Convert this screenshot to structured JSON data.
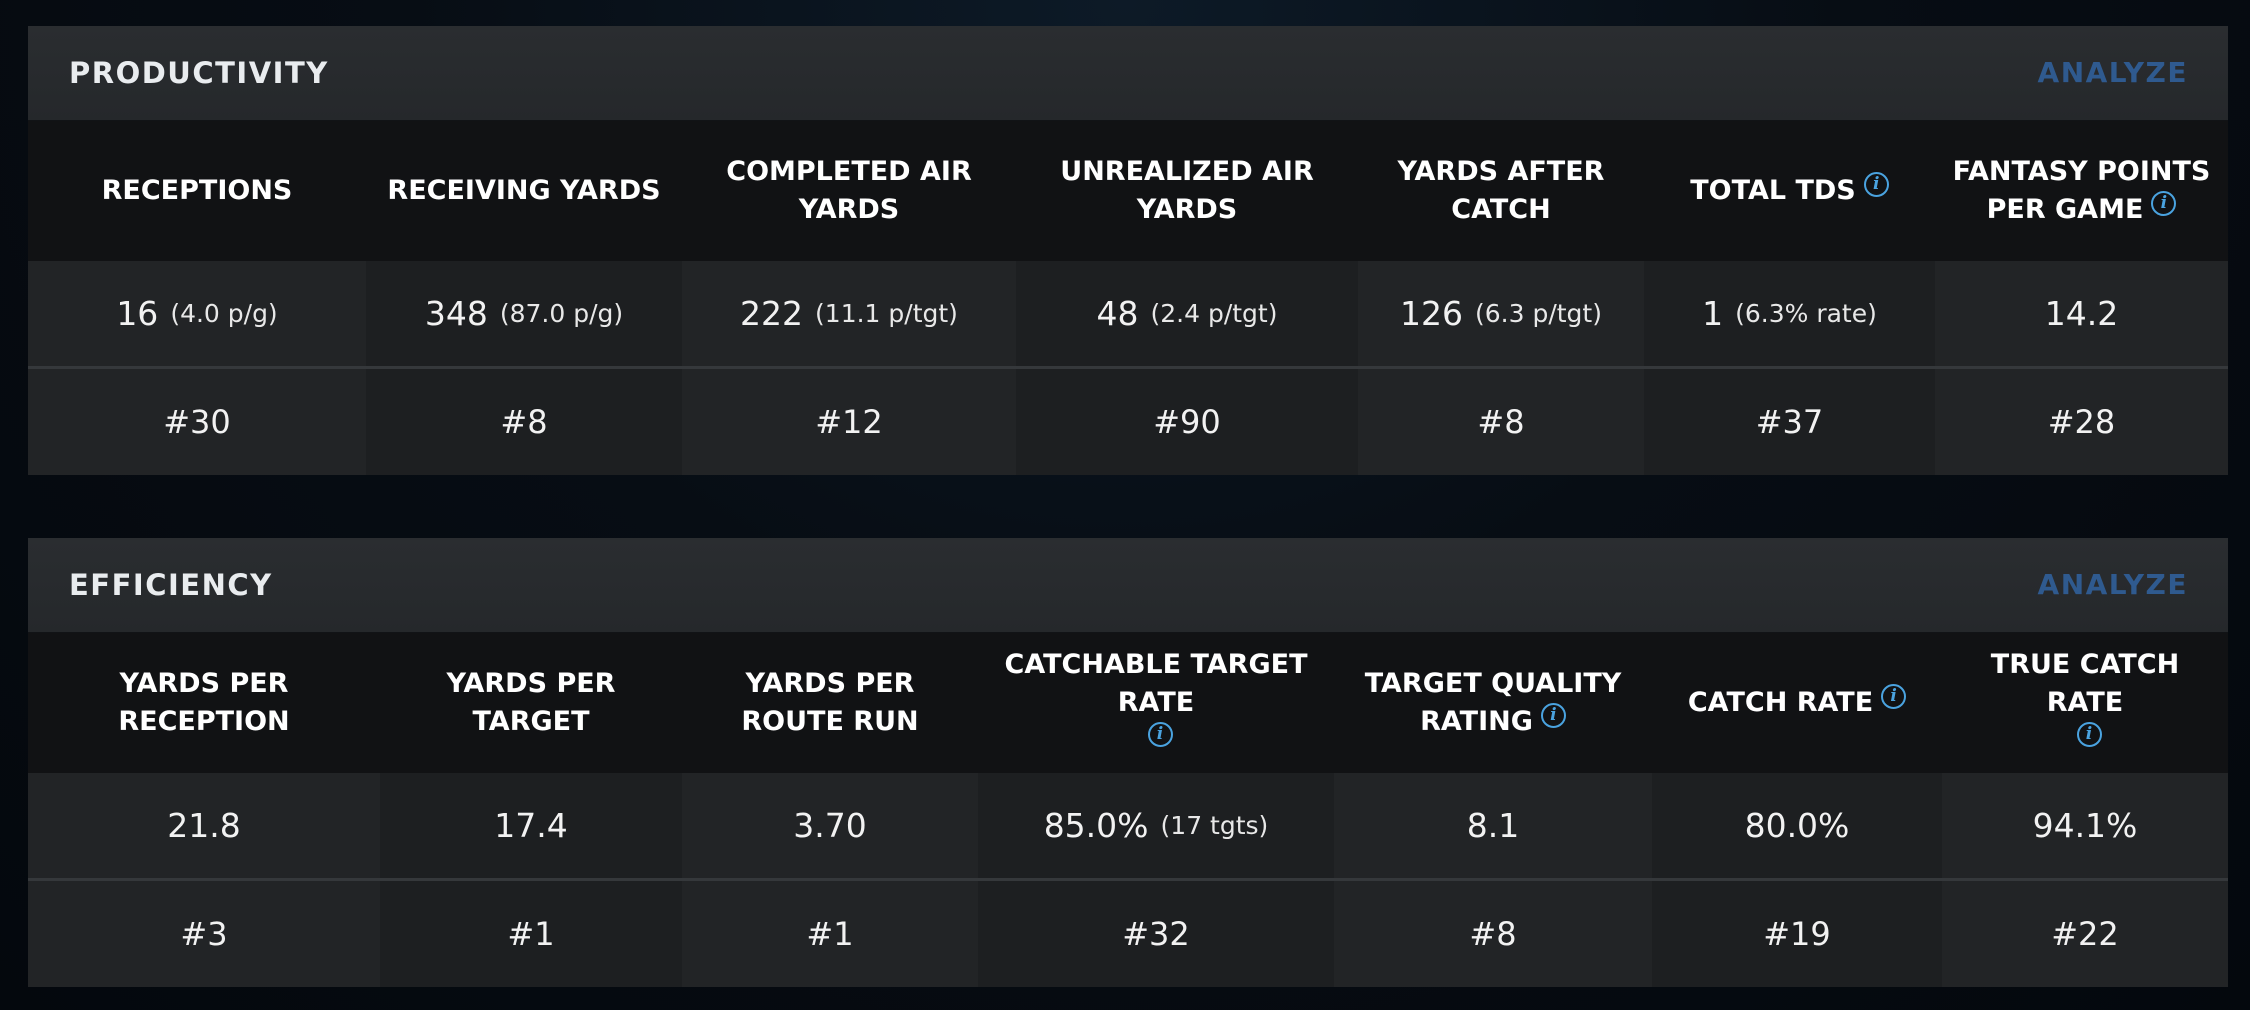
{
  "productivity": {
    "title": "PRODUCTIVITY",
    "analyze": "ANALYZE",
    "columns": [
      {
        "label": "RECEPTIONS",
        "value": "16",
        "sub": "(4.0 p/g)",
        "rank": "#30",
        "info": false
      },
      {
        "label": "RECEIVING YARDS",
        "value": "348",
        "sub": "(87.0 p/g)",
        "rank": "#8",
        "info": false
      },
      {
        "label": "COMPLETED AIR YARDS",
        "value": "222",
        "sub": "(11.1 p/tgt)",
        "rank": "#12",
        "info": false
      },
      {
        "label": "UNREALIZED AIR YARDS",
        "value": "48",
        "sub": "(2.4 p/tgt)",
        "rank": "#90",
        "info": false
      },
      {
        "label": "YARDS AFTER CATCH",
        "value": "126",
        "sub": "(6.3 p/tgt)",
        "rank": "#8",
        "info": false
      },
      {
        "label": "TOTAL TDS",
        "value": "1",
        "sub": "(6.3% rate)",
        "rank": "#37",
        "info": true
      },
      {
        "label": "FANTASY POINTS PER GAME",
        "value": "14.2",
        "sub": "",
        "rank": "#28",
        "info": true
      }
    ]
  },
  "efficiency": {
    "title": "EFFICIENCY",
    "analyze": "ANALYZE",
    "columns": [
      {
        "label": "YARDS PER RECEPTION",
        "value": "21.8",
        "sub": "",
        "rank": "#3",
        "info": false
      },
      {
        "label": "YARDS PER TARGET",
        "value": "17.4",
        "sub": "",
        "rank": "#1",
        "info": false
      },
      {
        "label": "YARDS PER ROUTE RUN",
        "value": "3.70",
        "sub": "",
        "rank": "#1",
        "info": false
      },
      {
        "label": "CATCHABLE TARGET RATE",
        "value": "85.0%",
        "sub": "(17 tgts)",
        "rank": "#32",
        "info": true
      },
      {
        "label": "TARGET QUALITY RATING",
        "value": "8.1",
        "sub": "",
        "rank": "#8",
        "info": true
      },
      {
        "label": "CATCH RATE",
        "value": "80.0%",
        "sub": "",
        "rank": "#19",
        "info": true
      },
      {
        "label": "TRUE CATCH RATE",
        "value": "94.1%",
        "sub": "",
        "rank": "#22",
        "info": true
      }
    ]
  },
  "icons": {
    "info": "info-icon"
  },
  "colors": {
    "accent": "#4aa3e0",
    "analyze": "#2f5a8f"
  }
}
